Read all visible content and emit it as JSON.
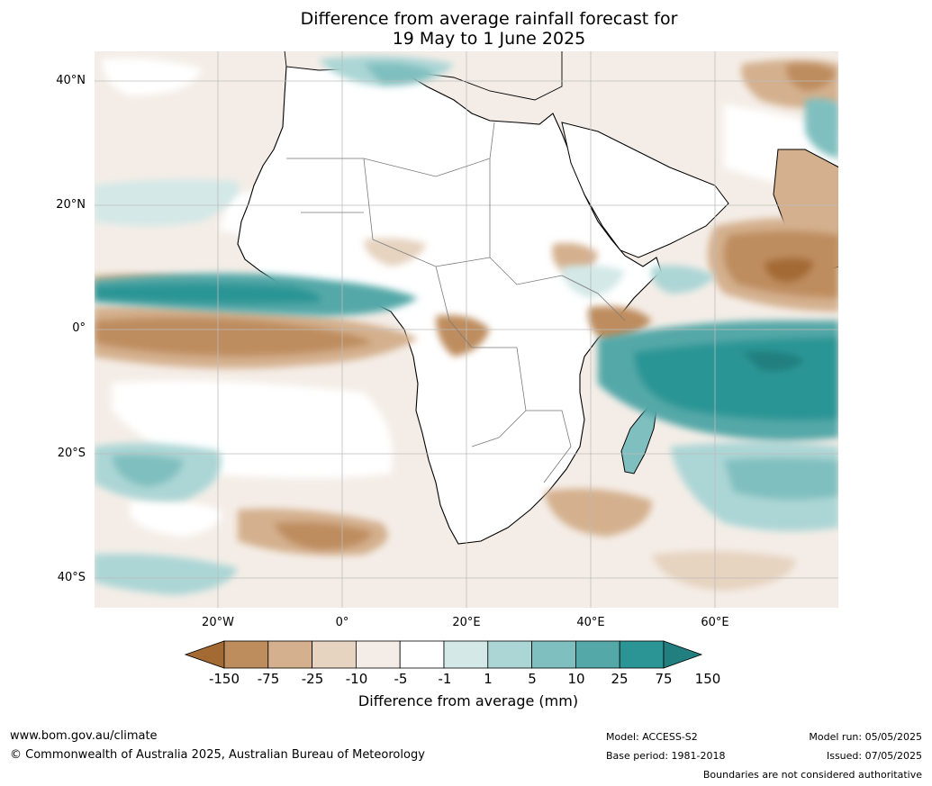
{
  "title": {
    "line1": "Difference from average rainfall forecast for",
    "line2": "19 May to 1 June 2025"
  },
  "map": {
    "latitude_labels": [
      "40°N",
      "20°N",
      "0°",
      "20°S",
      "40°S"
    ],
    "longitude_labels": [
      "20°W",
      "0°",
      "20°E",
      "40°E",
      "60°E"
    ]
  },
  "colorbar": {
    "title": "Difference from average (mm)",
    "ticks": [
      "-150",
      "-75",
      "-25",
      "-10",
      "-5",
      "-1",
      "1",
      "5",
      "10",
      "25",
      "75",
      "150"
    ],
    "colors": [
      "#a46a34",
      "#be8d5e",
      "#d4b08e",
      "#e6d3c0",
      "#f4ede7",
      "#ffffff",
      "#d3e8e7",
      "#acd6d5",
      "#80bfbf",
      "#55a8a8",
      "#2b9595",
      "#227f7f"
    ]
  },
  "footer": {
    "website": "www.bom.gov.au/climate",
    "copyright": "© Commonwealth of Australia 2025, Australian Bureau of Meteorology",
    "model": "Model: ACCESS-S2",
    "base_period": "Base period: 1981-2018",
    "model_run": "Model run: 05/05/2025",
    "issued": "Issued: 07/05/2025",
    "disclaimer": "Boundaries are not considered authoritative"
  }
}
